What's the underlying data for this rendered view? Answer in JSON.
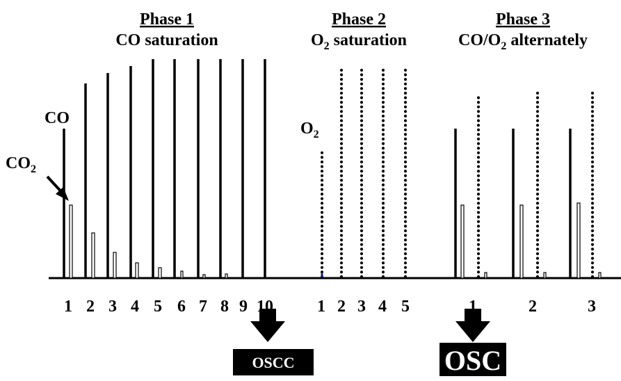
{
  "phases": [
    {
      "title": "Phase 1",
      "subtitle": [
        "CO saturation"
      ],
      "pulses": [
        "1",
        "2",
        "3",
        "4",
        "5",
        "6",
        "7",
        "8",
        "9",
        "10"
      ]
    },
    {
      "title": "Phase 2",
      "subtitle": [
        "O",
        "2",
        " saturation"
      ],
      "pulses": [
        "1",
        "2",
        "3",
        "4",
        "5"
      ]
    },
    {
      "title": "Phase 3",
      "subtitle": [
        "CO/O",
        "2",
        " alternately"
      ],
      "pulses": [
        "1",
        "2",
        "3"
      ]
    }
  ],
  "labels": {
    "co": "CO",
    "co2": [
      "CO",
      "2"
    ],
    "o2": [
      "O",
      "2"
    ]
  },
  "boxes": {
    "oscc": "OSCC",
    "osc": "OSC"
  }
}
